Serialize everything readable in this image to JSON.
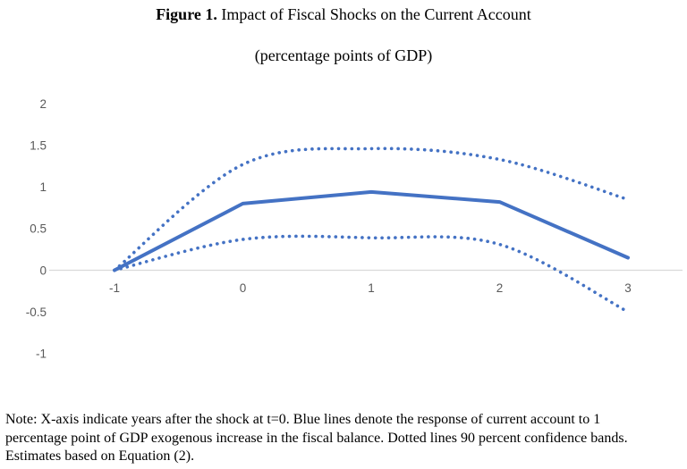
{
  "figure": {
    "title_label": "Figure 1.",
    "title_text": " Impact of Fiscal Shocks on the Current Account",
    "subtitle": "(percentage points of GDP)",
    "note_lines": [
      "Note: X-axis indicate years after the shock at t=0. Blue lines denote the response of current account to 1",
      "percentage point of GDP exogenous increase in the fiscal balance. Dotted lines 90 percent confidence bands.",
      "Estimates based on Equation (2)."
    ]
  },
  "chart_data": {
    "type": "line",
    "title": "Figure 1. Impact of Fiscal Shocks on the Current Account",
    "subtitle": "(percentage points of GDP)",
    "xlabel": "",
    "ylabel": "",
    "x": [
      -1,
      0,
      1,
      2,
      3
    ],
    "series": [
      {
        "name": "response",
        "label": "Response of current account to fiscal shock",
        "style": "solid",
        "values": [
          0,
          0.8,
          0.94,
          0.82,
          0.15
        ]
      },
      {
        "name": "upper-confidence-band",
        "label": "90 percent confidence band (upper)",
        "style": "dotted",
        "values": [
          0,
          1.27,
          1.46,
          1.33,
          0.85
        ]
      },
      {
        "name": "lower-confidence-band",
        "label": "90 percent confidence band (lower)",
        "style": "dotted",
        "values": [
          0,
          0.37,
          0.39,
          0.31,
          -0.5
        ]
      }
    ],
    "xticks": [
      -1,
      0,
      1,
      2,
      3
    ],
    "yticks": [
      2,
      1.5,
      1,
      0.5,
      0,
      -0.5,
      -1
    ],
    "ylim": [
      -1,
      2
    ],
    "grid": false,
    "legend": "none",
    "line_color": "#4472C4",
    "axis_color": "#D9D9D9",
    "tick_label_color": "#595959"
  }
}
